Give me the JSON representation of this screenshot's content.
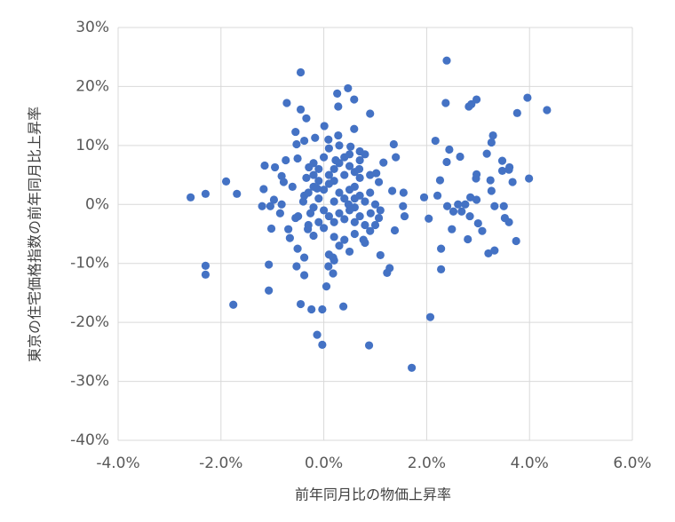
{
  "chart_data": {
    "type": "scatter",
    "x_label": "前年同月比の物価上昇率",
    "y_label": "東京の住宅価格指数の前年同月比上昇率",
    "color": "#4472c4",
    "grid": true,
    "xlim": [
      -4,
      6
    ],
    "xticks": [
      {
        "value": -4,
        "label": "-4.0%"
      },
      {
        "value": -2,
        "label": "-2.0%"
      },
      {
        "value": 0,
        "label": "0.0%"
      },
      {
        "value": 2,
        "label": "2.0%"
      },
      {
        "value": 4,
        "label": "4.0%"
      },
      {
        "value": 6,
        "label": "6.0%"
      }
    ],
    "ylim": [
      -40,
      30
    ],
    "yticks": [
      {
        "value": -40,
        "label": "-40%"
      },
      {
        "value": -30,
        "label": "-30%"
      },
      {
        "value": -20,
        "label": "-20%"
      },
      {
        "value": -10,
        "label": "-10%"
      },
      {
        "value": 0,
        "label": "0%"
      },
      {
        "value": 10,
        "label": "10%"
      },
      {
        "value": 20,
        "label": "20%"
      },
      {
        "value": 30,
        "label": "30%"
      }
    ],
    "x": [
      -2.59,
      -2.3,
      -2.3,
      -2.3,
      -1.9,
      -1.69,
      -1.76,
      -1.15,
      -1.17,
      -1.2,
      -1.07,
      -1.07,
      -0.95,
      -1.04,
      -0.97,
      -0.85,
      -1.02,
      -0.82,
      -0.72,
      -0.74,
      -0.78,
      -0.82,
      -0.69,
      -0.66,
      -0.61,
      -0.55,
      -0.51,
      -0.53,
      -0.55,
      -0.53,
      -0.51,
      -0.45,
      -0.45,
      -0.34,
      -0.38,
      -0.38,
      -0.38,
      -0.45,
      -0.24,
      -0.34,
      -0.38,
      -0.29,
      -0.26,
      -0.31,
      -0.17,
      -0.2,
      -0.13,
      -0.13,
      -0.03,
      -0.03,
      0.01,
      0.09,
      0.09,
      0.05,
      0.18,
      0.18,
      0.23,
      0.26,
      0.28,
      0.28,
      0.38,
      0.47,
      0.59,
      0.59,
      0.9,
      0.88,
      0.52,
      0.48,
      0.6,
      0.69,
      0.77,
      0.91,
      1.02,
      1.07,
      1.16,
      1.07,
      1.1,
      1.23,
      1.28,
      1.33,
      1.36,
      1.4,
      1.38,
      1.54,
      1.57,
      1.55,
      1.71,
      1.95,
      2.04,
      2.07,
      2.17,
      2.21,
      2.26,
      2.28,
      2.28,
      2.39,
      2.37,
      2.39,
      2.44,
      2.4,
      2.52,
      2.49,
      2.61,
      2.65,
      2.68,
      2.75,
      2.82,
      2.87,
      2.8,
      2.84,
      2.85,
      2.97,
      2.96,
      2.97,
      3.0,
      3.08,
      2.97,
      3.17,
      3.26,
      3.29,
      3.24,
      3.26,
      3.2,
      3.32,
      3.32,
      3.47,
      3.47,
      3.6,
      3.61,
      3.67,
      3.52,
      3.6,
      3.5,
      3.76,
      3.74,
      3.96,
      3.99,
      4.34,
      -0.3,
      -0.2,
      -0.1,
      0,
      0.1,
      0.2,
      0.3,
      0.4,
      0.5,
      0.6,
      0.7,
      0.8,
      -0.4,
      -0.2,
      0,
      0.1,
      0.2,
      0.3,
      0.4,
      0.5,
      0.6,
      0.7,
      0.8,
      0.9,
      -0.1,
      -0.3,
      0,
      0.2,
      0.4,
      0.6,
      0.8,
      0.1,
      0.2,
      0.3,
      0.4,
      0.5,
      0.6,
      0.7,
      0.8,
      0.9,
      -0.1,
      -0.2,
      0,
      0.1,
      0.3,
      0.5,
      0.7,
      -0.1,
      0.2,
      0.4,
      0.6,
      1.0,
      1.1,
      0.9,
      0.3,
      0.5,
      0.1,
      -0.5,
      0.7,
      1.0,
      0.2,
      -0.2
    ],
    "values": [
      1.2,
      1.8,
      -10.4,
      -11.9,
      3.9,
      1.8,
      -17,
      6.6,
      2.6,
      -0.3,
      -10.2,
      -14.6,
      6.3,
      -0.3,
      0.8,
      -1.5,
      -4.1,
      4.8,
      17.2,
      7.5,
      3.8,
      0,
      -4.2,
      -5.7,
      3,
      -2.3,
      -7.5,
      -10.5,
      12.3,
      10.2,
      7.8,
      22.4,
      16.1,
      14.6,
      10.8,
      -9,
      -12,
      -16.9,
      -17.8,
      4.5,
      1.5,
      6.3,
      -1.5,
      -4.2,
      11.3,
      -5.3,
      2.7,
      -22.1,
      -23.8,
      -17.8,
      13.3,
      11,
      -10.5,
      -13.9,
      -11.7,
      -9,
      7.5,
      18.8,
      16.6,
      11.7,
      -17.3,
      19.7,
      17.8,
      12.8,
      15.4,
      -23.9,
      9.8,
      0,
      -3,
      6,
      -6,
      -1.5,
      5.3,
      3.8,
      7.1,
      -2.3,
      -8.6,
      -11.6,
      -10.8,
      2.3,
      10.2,
      8,
      -4.4,
      -0.3,
      -2,
      2,
      -27.7,
      1.2,
      -2.4,
      -19.1,
      10.8,
      1.5,
      4.1,
      -7.5,
      -11,
      24.4,
      17.2,
      7.2,
      9.3,
      -0.3,
      -1.2,
      -4.2,
      0,
      8.1,
      -1.2,
      0,
      16.6,
      17,
      -5.9,
      -2,
      1.2,
      17.8,
      4.4,
      5.1,
      -3.2,
      -4.5,
      0.8,
      8.6,
      10.5,
      11.7,
      4.1,
      2.3,
      -8.3,
      -7.8,
      -0.3,
      7.4,
      5.7,
      5.9,
      6.3,
      3.8,
      -2.3,
      -3,
      -0.3,
      15.5,
      -6.2,
      18.1,
      4.4,
      16,
      2,
      3,
      1,
      2.5,
      3.5,
      4,
      2,
      1,
      2.5,
      3,
      1.5,
      0.5,
      0.5,
      -0.5,
      -1,
      -2,
      -3,
      -1.5,
      -2.5,
      -1,
      -0.5,
      -2,
      -3.5,
      -4.5,
      -3,
      -3.5,
      -4,
      -5.5,
      -6,
      -5,
      -6.5,
      5,
      6,
      7,
      8,
      6.5,
      5.5,
      7.5,
      8.5,
      5,
      6,
      7,
      8,
      9.5,
      10,
      8.5,
      9,
      4,
      0.5,
      5,
      1,
      0,
      -1,
      2,
      -7,
      -8,
      -8.5,
      -2,
      4.5,
      -3.5,
      -9.5,
      5
    ]
  }
}
